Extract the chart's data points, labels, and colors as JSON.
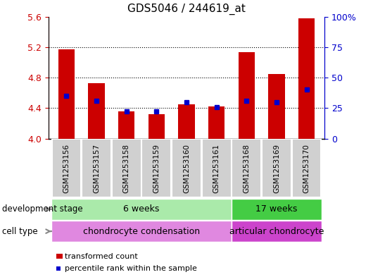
{
  "title": "GDS5046 / 244619_at",
  "samples": [
    "GSM1253156",
    "GSM1253157",
    "GSM1253158",
    "GSM1253159",
    "GSM1253160",
    "GSM1253161",
    "GSM1253168",
    "GSM1253169",
    "GSM1253170"
  ],
  "transformed_counts": [
    5.17,
    4.73,
    4.36,
    4.32,
    4.45,
    4.42,
    5.13,
    4.85,
    5.58
  ],
  "percentile_ranks_pct": [
    35,
    31,
    22,
    22,
    30,
    26,
    31,
    30,
    40
  ],
  "ylim_left": [
    4.0,
    5.6
  ],
  "ylim_right": [
    0,
    100
  ],
  "yticks_left": [
    4.0,
    4.4,
    4.8,
    5.2,
    5.6
  ],
  "yticks_right": [
    0,
    25,
    50,
    75,
    100
  ],
  "grid_lines": [
    5.2,
    4.8,
    4.4
  ],
  "bar_color": "#cc0000",
  "dot_color": "#0000cc",
  "bar_bottom": 4.0,
  "development_stage_groups": [
    {
      "label": "6 weeks",
      "start": 0,
      "end": 6,
      "color": "#aaeaaa"
    },
    {
      "label": "17 weeks",
      "start": 6,
      "end": 9,
      "color": "#44cc44"
    }
  ],
  "cell_type_groups": [
    {
      "label": "chondrocyte condensation",
      "start": 0,
      "end": 6,
      "color": "#e088e0"
    },
    {
      "label": "articular chondrocyte",
      "start": 6,
      "end": 9,
      "color": "#cc44cc"
    }
  ],
  "left_axis_color": "#cc0000",
  "right_axis_color": "#0000cc",
  "annotation_dev": "development stage",
  "annotation_cell": "cell type",
  "legend_bar_label": "transformed count",
  "legend_dot_label": "percentile rank within the sample",
  "title_fontsize": 11,
  "tick_fontsize": 9,
  "label_fontsize": 9,
  "bar_width": 0.55
}
